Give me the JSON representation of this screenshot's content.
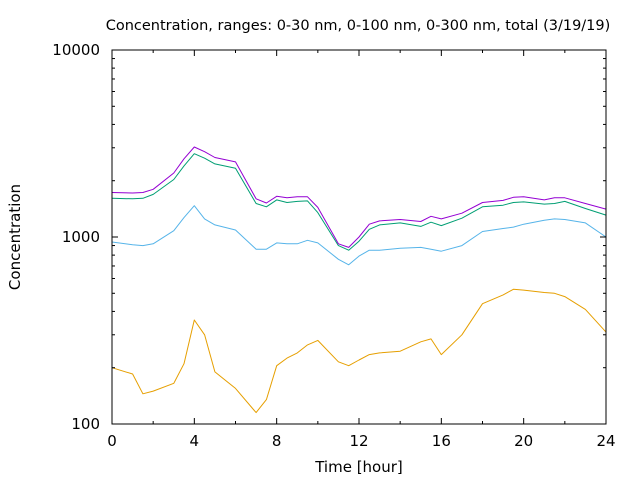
{
  "chart_data": {
    "type": "line",
    "title": "Concentration, ranges: 0-30 nm, 0-100 nm, 0-300 nm, total (3/19/19)",
    "xlabel": "Time [hour]",
    "ylabel": "Concentration",
    "xlim": [
      0,
      24
    ],
    "ylim": [
      100,
      10000
    ],
    "y_scale": "log",
    "x_ticks": [
      "0",
      "4",
      "8",
      "12",
      "16",
      "20",
      "24"
    ],
    "y_ticks": [
      "100",
      "1000",
      "10000"
    ],
    "grid": false,
    "legend": "none",
    "x": [
      0,
      1,
      1.5,
      2,
      3,
      3.5,
      4,
      4.5,
      5,
      6,
      7,
      7.5,
      8,
      8.5,
      9,
      9.5,
      10,
      11,
      11.5,
      12,
      12.5,
      13,
      14,
      15,
      15.5,
      16,
      17,
      18,
      19,
      19.5,
      20,
      21,
      21.5,
      22,
      23,
      24
    ],
    "series": [
      {
        "color": "#e69f00",
        "values": [
          200,
          185,
          145,
          150,
          165,
          210,
          360,
          300,
          190,
          155,
          115,
          135,
          205,
          225,
          240,
          265,
          280,
          215,
          205,
          220,
          235,
          240,
          245,
          275,
          285,
          235,
          300,
          440,
          490,
          525,
          520,
          505,
          500,
          480,
          410,
          310
        ]
      },
      {
        "color": "#56b4e9",
        "values": [
          940,
          910,
          900,
          920,
          1080,
          1270,
          1470,
          1250,
          1160,
          1090,
          860,
          860,
          930,
          920,
          920,
          960,
          930,
          760,
          710,
          790,
          850,
          850,
          870,
          880,
          860,
          840,
          900,
          1070,
          1110,
          1130,
          1170,
          1230,
          1250,
          1240,
          1190,
          1000
        ]
      },
      {
        "color": "#009e73",
        "values": [
          1610,
          1600,
          1610,
          1690,
          2030,
          2400,
          2790,
          2640,
          2460,
          2330,
          1510,
          1450,
          1580,
          1530,
          1550,
          1560,
          1350,
          900,
          850,
          950,
          1100,
          1160,
          1190,
          1140,
          1200,
          1150,
          1260,
          1450,
          1480,
          1530,
          1540,
          1500,
          1510,
          1550,
          1420,
          1310
        ]
      },
      {
        "color": "#9400d3",
        "values": [
          1730,
          1720,
          1730,
          1800,
          2200,
          2620,
          3030,
          2860,
          2660,
          2520,
          1600,
          1520,
          1650,
          1620,
          1640,
          1640,
          1440,
          920,
          880,
          1000,
          1170,
          1220,
          1240,
          1210,
          1290,
          1250,
          1340,
          1530,
          1570,
          1630,
          1640,
          1580,
          1620,
          1620,
          1510,
          1410
        ]
      }
    ]
  }
}
